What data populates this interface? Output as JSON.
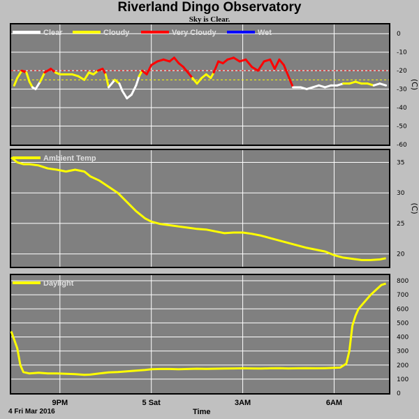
{
  "header": {
    "title": "Riverland Dingo Observatory",
    "subtitle": "Sky is Clear."
  },
  "footer": {
    "date": "4 Fri Mar 2016",
    "xlabel": "Time"
  },
  "colors": {
    "background": "#c0c0c0",
    "plot_bg": "#808080",
    "grid": "#ffffff",
    "clear": "#ffffff",
    "cloudy": "#ffff00",
    "very_cloudy": "#ff0000",
    "wet": "#0000ff"
  },
  "chart_data": [
    {
      "type": "line",
      "name": "sky-temperature",
      "ylabel": "(C)",
      "ylim": [
        -60,
        5
      ],
      "yticks": [
        0,
        -10,
        -20,
        -30,
        -40,
        -50,
        -60
      ],
      "thresholds": [
        -20,
        -25
      ],
      "legend": [
        "Clear",
        "Cloudy",
        "Very Cloudy",
        "Wet"
      ],
      "xticks": [
        {
          "label": "9PM",
          "t": 21
        },
        {
          "label": "5 Sat",
          "t": 24
        },
        {
          "label": "3AM",
          "t": 27
        },
        {
          "label": "6AM",
          "t": 30
        }
      ],
      "xlim": [
        19.4,
        31.8
      ],
      "points": [
        [
          19.5,
          -28,
          "cloudy"
        ],
        [
          19.6,
          -24,
          "cloudy"
        ],
        [
          19.75,
          -20,
          "very_cloudy"
        ],
        [
          19.9,
          -21,
          "cloudy"
        ],
        [
          20.0,
          -26,
          "cloudy"
        ],
        [
          20.1,
          -29,
          "clear"
        ],
        [
          20.2,
          -30,
          "clear"
        ],
        [
          20.35,
          -26,
          "cloudy"
        ],
        [
          20.5,
          -21,
          "very_cloudy"
        ],
        [
          20.7,
          -19,
          "very_cloudy"
        ],
        [
          20.85,
          -21,
          "cloudy"
        ],
        [
          21.0,
          -22,
          "cloudy"
        ],
        [
          21.2,
          -22,
          "cloudy"
        ],
        [
          21.4,
          -22,
          "cloudy"
        ],
        [
          21.6,
          -23,
          "cloudy"
        ],
        [
          21.8,
          -25,
          "cloudy"
        ],
        [
          21.95,
          -21,
          "cloudy"
        ],
        [
          22.1,
          -22,
          "cloudy"
        ],
        [
          22.25,
          -20,
          "very_cloudy"
        ],
        [
          22.4,
          -19,
          "very_cloudy"
        ],
        [
          22.5,
          -22,
          "cloudy"
        ],
        [
          22.6,
          -29,
          "clear"
        ],
        [
          22.7,
          -27,
          "clear"
        ],
        [
          22.8,
          -25,
          "cloudy"
        ],
        [
          22.95,
          -27,
          "clear"
        ],
        [
          23.05,
          -31,
          "clear"
        ],
        [
          23.2,
          -35,
          "clear"
        ],
        [
          23.35,
          -33,
          "clear"
        ],
        [
          23.5,
          -28,
          "clear"
        ],
        [
          23.6,
          -23,
          "cloudy"
        ],
        [
          23.7,
          -20,
          "very_cloudy"
        ],
        [
          23.85,
          -22,
          "very_cloudy"
        ],
        [
          24.0,
          -17,
          "very_cloudy"
        ],
        [
          24.2,
          -15,
          "very_cloudy"
        ],
        [
          24.4,
          -14,
          "very_cloudy"
        ],
        [
          24.6,
          -15,
          "very_cloudy"
        ],
        [
          24.75,
          -13,
          "very_cloudy"
        ],
        [
          24.9,
          -16,
          "very_cloudy"
        ],
        [
          25.05,
          -18,
          "very_cloudy"
        ],
        [
          25.2,
          -21,
          "very_cloudy"
        ],
        [
          25.35,
          -24,
          "cloudy"
        ],
        [
          25.5,
          -27,
          "cloudy"
        ],
        [
          25.65,
          -24,
          "cloudy"
        ],
        [
          25.8,
          -22,
          "cloudy"
        ],
        [
          25.95,
          -24,
          "cloudy"
        ],
        [
          26.05,
          -21,
          "very_cloudy"
        ],
        [
          26.2,
          -15,
          "very_cloudy"
        ],
        [
          26.35,
          -16,
          "very_cloudy"
        ],
        [
          26.5,
          -14,
          "very_cloudy"
        ],
        [
          26.7,
          -13,
          "very_cloudy"
        ],
        [
          26.9,
          -15,
          "very_cloudy"
        ],
        [
          27.1,
          -14,
          "very_cloudy"
        ],
        [
          27.3,
          -18,
          "very_cloudy"
        ],
        [
          27.5,
          -20,
          "very_cloudy"
        ],
        [
          27.7,
          -15,
          "very_cloudy"
        ],
        [
          27.9,
          -14,
          "very_cloudy"
        ],
        [
          28.05,
          -19,
          "very_cloudy"
        ],
        [
          28.2,
          -14,
          "very_cloudy"
        ],
        [
          28.35,
          -17,
          "very_cloudy"
        ],
        [
          28.45,
          -21,
          "very_cloudy"
        ],
        [
          28.55,
          -25,
          "very_cloudy"
        ],
        [
          28.65,
          -29,
          "clear"
        ],
        [
          28.9,
          -29,
          "clear"
        ],
        [
          29.1,
          -30,
          "clear"
        ],
        [
          29.3,
          -29,
          "clear"
        ],
        [
          29.5,
          -28,
          "clear"
        ],
        [
          29.7,
          -29,
          "clear"
        ],
        [
          29.9,
          -28,
          "clear"
        ],
        [
          30.1,
          -28,
          "clear"
        ],
        [
          30.3,
          -27,
          "cloudy"
        ],
        [
          30.5,
          -27,
          "cloudy"
        ],
        [
          30.7,
          -26,
          "cloudy"
        ],
        [
          30.9,
          -27,
          "cloudy"
        ],
        [
          31.1,
          -27,
          "cloudy"
        ],
        [
          31.3,
          -28,
          "clear"
        ],
        [
          31.5,
          -27,
          "clear"
        ],
        [
          31.7,
          -28,
          "clear"
        ]
      ]
    },
    {
      "type": "line",
      "name": "ambient-temperature",
      "ylabel": "(C)",
      "ylim": [
        17.9,
        37
      ],
      "yticks": [
        35,
        30,
        25,
        20
      ],
      "legend": [
        "Ambient Temp"
      ],
      "xticks": [
        {
          "label": "9PM",
          "t": 21
        },
        {
          "label": "5 Sat",
          "t": 24
        },
        {
          "label": "3AM",
          "t": 27
        },
        {
          "label": "6AM",
          "t": 30
        }
      ],
      "xlim": [
        19.4,
        31.8
      ],
      "x": [
        19.4,
        19.6,
        19.8,
        20.0,
        20.3,
        20.6,
        20.9,
        21.2,
        21.5,
        21.8,
        22.0,
        22.3,
        22.6,
        22.9,
        23.2,
        23.5,
        23.8,
        24.0,
        24.3,
        24.6,
        24.9,
        25.2,
        25.5,
        25.8,
        26.1,
        26.4,
        26.7,
        27.0,
        27.3,
        27.6,
        27.9,
        28.2,
        28.5,
        28.8,
        29.1,
        29.4,
        29.7,
        30.0,
        30.3,
        30.6,
        30.9,
        31.2,
        31.5,
        31.7
      ],
      "values": [
        35.8,
        35.0,
        34.7,
        34.7,
        34.5,
        34.0,
        33.8,
        33.5,
        33.8,
        33.5,
        32.7,
        32.0,
        31.0,
        30.0,
        28.5,
        27.0,
        25.8,
        25.3,
        24.9,
        24.7,
        24.5,
        24.3,
        24.1,
        24.0,
        23.7,
        23.4,
        23.5,
        23.5,
        23.3,
        23.0,
        22.6,
        22.2,
        21.8,
        21.4,
        21.0,
        20.7,
        20.4,
        19.8,
        19.4,
        19.2,
        19.0,
        19.0,
        19.1,
        19.3
      ]
    },
    {
      "type": "line",
      "name": "daylight",
      "ylim": [
        0,
        840
      ],
      "yticks": [
        800,
        700,
        600,
        500,
        400,
        300,
        200,
        100,
        0
      ],
      "legend": [
        "Daylight"
      ],
      "xticks": [
        {
          "label": "9PM",
          "t": 21
        },
        {
          "label": "5 Sat",
          "t": 24
        },
        {
          "label": "3AM",
          "t": 27
        },
        {
          "label": "6AM",
          "t": 30
        }
      ],
      "xlim": [
        19.4,
        31.8
      ],
      "x": [
        19.4,
        19.5,
        19.6,
        19.7,
        19.8,
        20.0,
        20.3,
        20.6,
        20.9,
        21.2,
        21.5,
        21.8,
        22.0,
        22.3,
        22.6,
        22.9,
        23.2,
        23.5,
        23.8,
        24.0,
        24.3,
        24.6,
        24.9,
        25.2,
        25.5,
        25.8,
        26.1,
        26.4,
        26.7,
        27.0,
        27.3,
        27.6,
        27.9,
        28.2,
        28.5,
        28.8,
        29.1,
        29.4,
        29.7,
        30.0,
        30.2,
        30.4,
        30.5,
        30.6,
        30.7,
        30.8,
        31.0,
        31.2,
        31.4,
        31.55,
        31.7
      ],
      "values": [
        440,
        380,
        320,
        200,
        150,
        140,
        145,
        140,
        140,
        138,
        135,
        130,
        132,
        140,
        148,
        150,
        155,
        160,
        165,
        170,
        172,
        172,
        170,
        172,
        174,
        173,
        174,
        175,
        176,
        177,
        176,
        175,
        177,
        178,
        176,
        177,
        178,
        177,
        178,
        180,
        182,
        210,
        300,
        480,
        550,
        600,
        650,
        700,
        740,
        770,
        780
      ]
    }
  ]
}
